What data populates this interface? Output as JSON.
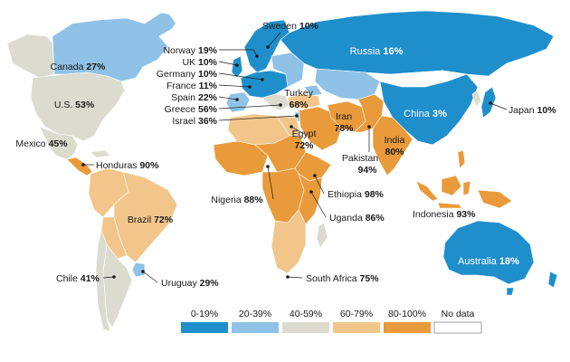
{
  "colors": {
    "0-19%": "#1f8fcc",
    "20-39%": "#8fc2e6",
    "40-59%": "#dcdbcf",
    "60-79%": "#f2c68a",
    "80-100%": "#e99a3a",
    "No data": "#ffffff"
  },
  "labels": [
    {
      "id": "sweden",
      "name": "Sweden",
      "value": "10%",
      "color": "white-bg"
    },
    {
      "id": "norway",
      "name": "Norway",
      "value": "19%"
    },
    {
      "id": "uk",
      "name": "UK",
      "value": "10%"
    },
    {
      "id": "germany",
      "name": "Germany",
      "value": "10%"
    },
    {
      "id": "france",
      "name": "France",
      "value": "11%"
    },
    {
      "id": "spain",
      "name": "Spain",
      "value": "22%"
    },
    {
      "id": "greece",
      "name": "Greece",
      "value": "56%"
    },
    {
      "id": "israel",
      "name": "Israel",
      "value": "36%"
    },
    {
      "id": "turkey",
      "name": "Turkey",
      "value": "68%"
    },
    {
      "id": "egypt",
      "name": "Egypt",
      "value": "72%"
    },
    {
      "id": "iran",
      "name": "Iran",
      "value": "78%"
    },
    {
      "id": "india",
      "name": "India",
      "value": "80%"
    },
    {
      "id": "pakistan",
      "name": "Pakistan",
      "value": "94%"
    },
    {
      "id": "russia",
      "name": "Russia",
      "value": "16%"
    },
    {
      "id": "china",
      "name": "China",
      "value": "3%"
    },
    {
      "id": "japan",
      "name": "Japan",
      "value": "10%"
    },
    {
      "id": "canada",
      "name": "Canada",
      "value": "27%"
    },
    {
      "id": "us",
      "name": "U.S.",
      "value": "53%"
    },
    {
      "id": "mexico",
      "name": "Mexico",
      "value": "45%"
    },
    {
      "id": "honduras",
      "name": "Honduras",
      "value": "90%"
    },
    {
      "id": "brazil",
      "name": "Brazil",
      "value": "72%"
    },
    {
      "id": "chile",
      "name": "Chile",
      "value": "41%"
    },
    {
      "id": "uruguay",
      "name": "Uruguay",
      "value": "29%"
    },
    {
      "id": "nigeria",
      "name": "Nigeria",
      "value": "88%"
    },
    {
      "id": "ethiopia",
      "name": "Ethiopia",
      "value": "98%"
    },
    {
      "id": "uganda",
      "name": "Uganda",
      "value": "86%"
    },
    {
      "id": "southafrica",
      "name": "South Africa",
      "value": "75%"
    },
    {
      "id": "indonesia",
      "name": "Indonesia",
      "value": "93%"
    },
    {
      "id": "australia",
      "name": "Australia",
      "value": "18%"
    }
  ],
  "legend": [
    {
      "label": "0-19%",
      "color": "#1f8fcc"
    },
    {
      "label": "20-39%",
      "color": "#8fc2e6"
    },
    {
      "label": "40-59%",
      "color": "#dcdbcf"
    },
    {
      "label": "60-79%",
      "color": "#f2c68a"
    },
    {
      "label": "80-100%",
      "color": "#e99a3a"
    },
    {
      "label": "No data",
      "color": "#ffffff"
    }
  ]
}
